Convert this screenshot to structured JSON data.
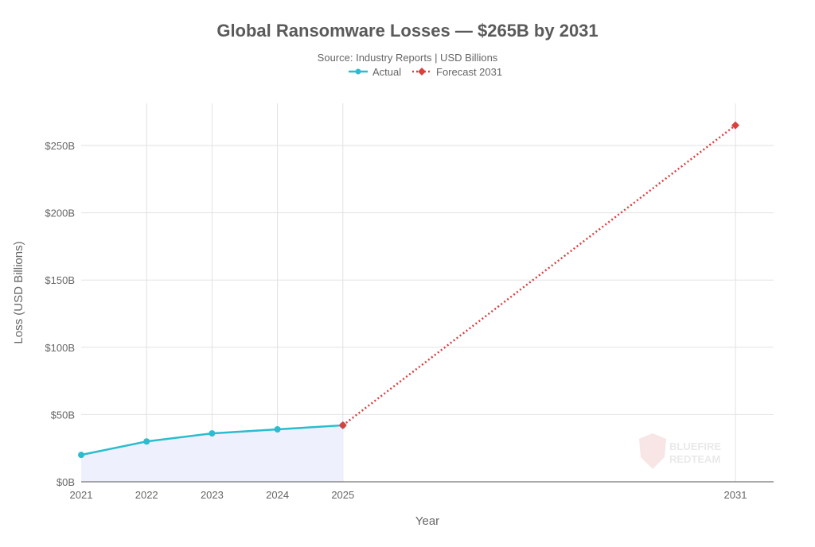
{
  "chart_data": {
    "type": "line",
    "title": "Global Ransomware Losses — $265B by 2031",
    "subtitle": "Source: Industry Reports | USD Billions",
    "xlabel": "Year",
    "ylabel": "Loss (USD Billions)",
    "x_ticks": [
      "2021",
      "2022",
      "2023",
      "2024",
      "2025",
      "2031"
    ],
    "y_ticks": [
      "$0B",
      "$50B",
      "$100B",
      "$150B",
      "$200B",
      "$250B"
    ],
    "y_tick_values": [
      0,
      50,
      100,
      150,
      200,
      250
    ],
    "xlim": [
      2021,
      2031
    ],
    "ylim": [
      0,
      280
    ],
    "grid": true,
    "legend_placement": "top-center",
    "series": [
      {
        "name": "Actual",
        "color": "#2bbccf",
        "style": "solid-marker-circle-area-fill",
        "x": [
          2021,
          2022,
          2023,
          2024,
          2025
        ],
        "y": [
          20,
          30,
          36,
          39,
          42
        ]
      },
      {
        "name": "Forecast 2031",
        "color": "#d9413f",
        "style": "dotted-marker-diamond",
        "x": [
          2025,
          2031
        ],
        "y": [
          42,
          265
        ]
      }
    ],
    "area_fill_color": "#eef0fd",
    "watermark": "BLUEFIRE REDTEAM"
  }
}
